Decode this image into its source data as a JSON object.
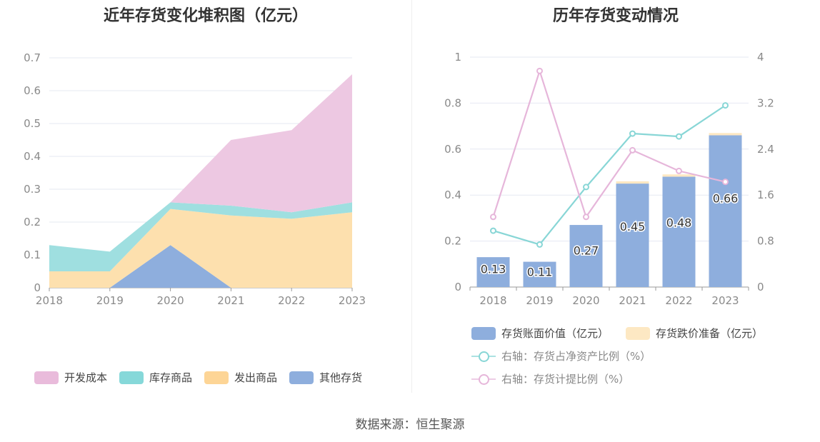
{
  "source": "数据来源：恒生聚源",
  "chart_data": [
    {
      "type": "area",
      "title": "近年存货变化堆积图（亿元）",
      "x": [
        "2018",
        "2019",
        "2020",
        "2021",
        "2022",
        "2023"
      ],
      "ylim": [
        0,
        0.7
      ],
      "yticks": [
        "0",
        "0.1",
        "0.2",
        "0.3",
        "0.4",
        "0.5",
        "0.6",
        "0.7"
      ],
      "stacked": true,
      "series": [
        {
          "name": "其他存货",
          "color": "#8eaedd",
          "values": [
            0,
            0,
            0.13,
            0,
            0,
            0
          ]
        },
        {
          "name": "发出商品",
          "color": "#fde0ae",
          "values": [
            0.05,
            0.05,
            0.11,
            0.22,
            0.21,
            0.23
          ]
        },
        {
          "name": "库存商品",
          "color": "#9fdfe0",
          "values": [
            0.08,
            0.06,
            0.02,
            0.03,
            0.02,
            0.03
          ]
        },
        {
          "name": "开发成本",
          "color": "#edc8e2",
          "values": [
            0,
            0,
            0,
            0.2,
            0.25,
            0.39
          ]
        }
      ],
      "legend": [
        "开发成本",
        "库存商品",
        "发出商品",
        "其他存货"
      ],
      "legend_colors": [
        "#e9bbdb",
        "#86d8d9",
        "#fdd596",
        "#8eaedd"
      ],
      "legend_position": "bottom"
    },
    {
      "type": "bar",
      "title": "历年存货变动情况",
      "categories": [
        "2018",
        "2019",
        "2020",
        "2021",
        "2022",
        "2023"
      ],
      "ylim": [
        0,
        1
      ],
      "yticks": [
        "0",
        "0.2",
        "0.4",
        "0.6",
        "0.8",
        "1"
      ],
      "y2lim": [
        0,
        4
      ],
      "y2ticks": [
        "0",
        "0.8",
        "1.6",
        "2.4",
        "3.2",
        "4"
      ],
      "bars": [
        {
          "name": "存货账面价值（亿元）",
          "color": "#8eaedd",
          "values": [
            0.13,
            0.11,
            0.27,
            0.45,
            0.48,
            0.66
          ],
          "labels": [
            "0.13",
            "0.11",
            "0.27",
            "0.45",
            "0.48",
            "0.66"
          ]
        },
        {
          "name": "存货跌价准备（亿元）",
          "color": "#fde8c3",
          "values": [
            0,
            0,
            0,
            0.01,
            0.01,
            0.01
          ]
        }
      ],
      "lines": [
        {
          "name": "右轴：存货占净资产比例（%）",
          "color": "#88d6d6",
          "axis": "right",
          "values": [
            0.98,
            0.74,
            1.74,
            2.67,
            2.62,
            3.16
          ]
        },
        {
          "name": "右轴：存货计提比例（%）",
          "color": "#e6b6da",
          "axis": "right",
          "values": [
            1.22,
            3.76,
            1.22,
            2.38,
            2.02,
            1.83
          ]
        }
      ],
      "legend_position": "bottom"
    }
  ]
}
